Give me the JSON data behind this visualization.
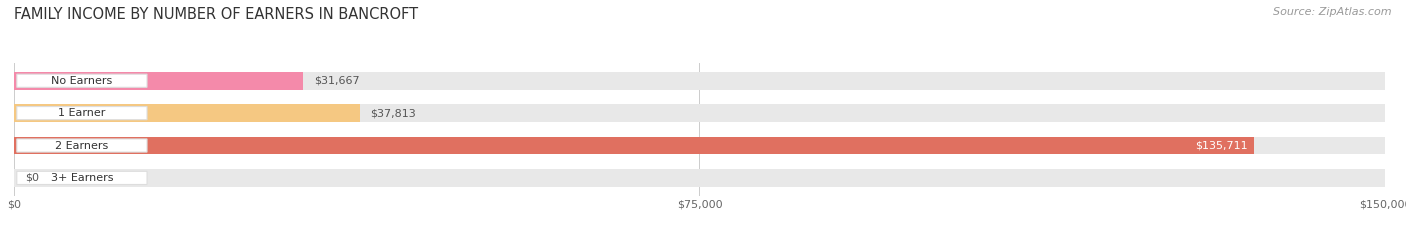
{
  "title": "FAMILY INCOME BY NUMBER OF EARNERS IN BANCROFT",
  "source": "Source: ZipAtlas.com",
  "categories": [
    "No Earners",
    "1 Earner",
    "2 Earners",
    "3+ Earners"
  ],
  "values": [
    31667,
    37813,
    135711,
    0
  ],
  "value_labels": [
    "$31,667",
    "$37,813",
    "$135,711",
    "$0"
  ],
  "bar_colors": [
    "#f48aaa",
    "#f5c882",
    "#e07060",
    "#a8bede"
  ],
  "bar_bg_color": "#e8e8e8",
  "fig_bg_color": "#ffffff",
  "xlim": [
    0,
    150000
  ],
  "xticks": [
    0,
    75000,
    150000
  ],
  "xtick_labels": [
    "$0",
    "$75,000",
    "$150,000"
  ],
  "title_fontsize": 10.5,
  "source_fontsize": 8,
  "bar_fontsize": 8,
  "cat_fontsize": 8
}
